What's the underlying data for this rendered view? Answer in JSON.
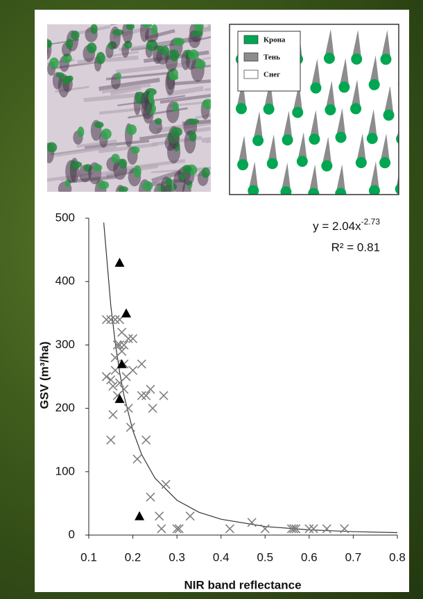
{
  "diagram": {
    "legend": [
      {
        "label": "Крона",
        "color": "#00a651"
      },
      {
        "label": "Тень",
        "color": "#8c8c8c"
      },
      {
        "label": "Снег",
        "color": "#ffffff"
      }
    ]
  },
  "chart_data": {
    "type": "scatter",
    "x_label": "NIR band reflectance",
    "y_label": "GSV (m³/ha)",
    "equation": {
      "text": "y = 2.04x",
      "exponent": "-2.73"
    },
    "r_squared": "R² = 0.81",
    "xlim": [
      0.1,
      0.8
    ],
    "xticks": [
      0.1,
      0.2,
      0.3,
      0.4,
      0.5,
      0.6,
      0.7,
      0.8
    ],
    "ylim": [
      0,
      500
    ],
    "yticks": [
      0,
      100,
      200,
      300,
      400,
      500
    ],
    "series": [
      {
        "type": "scatter",
        "marker": "x",
        "color": "#7f7f7f",
        "x": [
          0.14,
          0.14,
          0.15,
          0.16,
          0.17,
          0.15,
          0.155,
          0.15,
          0.155,
          0.16,
          0.16,
          0.165,
          0.17,
          0.175,
          0.175,
          0.165,
          0.17,
          0.18,
          0.18,
          0.185,
          0.19,
          0.2,
          0.19,
          0.195,
          0.18,
          0.2,
          0.21,
          0.22,
          0.22,
          0.23,
          0.23,
          0.24,
          0.245,
          0.24,
          0.26,
          0.265,
          0.27,
          0.275,
          0.3,
          0.305,
          0.33,
          0.42,
          0.47,
          0.5,
          0.56,
          0.565,
          0.57,
          0.6,
          0.61,
          0.64,
          0.68
        ],
        "values": [
          250,
          340,
          340,
          340,
          340,
          245,
          235,
          150,
          190,
          280,
          260,
          300,
          300,
          320,
          290,
          220,
          240,
          300,
          270,
          250,
          310,
          310,
          200,
          170,
          230,
          260,
          120,
          270,
          220,
          150,
          220,
          230,
          200,
          60,
          30,
          10,
          220,
          80,
          10,
          10,
          30,
          10,
          20,
          10,
          10,
          10,
          10,
          10,
          10,
          10,
          10
        ]
      },
      {
        "type": "scatter",
        "marker": "triangle",
        "color": "#000000",
        "x": [
          0.17,
          0.185,
          0.175,
          0.17,
          0.215
        ],
        "values": [
          430,
          350,
          270,
          215,
          30
        ]
      },
      {
        "type": "line",
        "color": "#333333",
        "x": [
          0.134,
          0.15,
          0.16,
          0.17,
          0.18,
          0.2,
          0.22,
          0.25,
          0.3,
          0.35,
          0.4,
          0.5,
          0.6,
          0.7,
          0.8
        ],
        "values": [
          493,
          362,
          304,
          257,
          220,
          165,
          127,
          90,
          55,
          36,
          25,
          13.5,
          8.2,
          5.4,
          3.8
        ]
      }
    ]
  }
}
